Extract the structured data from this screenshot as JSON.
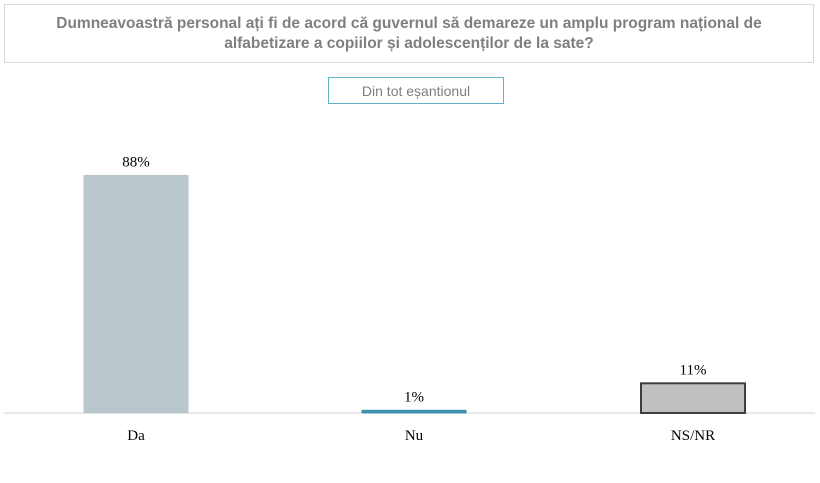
{
  "title": "Dumneavoastră personal ați fi de acord că guvernul să demareze un amplu program național de alfabetizare a copiilor și adolescenților de la sate?",
  "subtitle": "Din tot eșantionul",
  "chart_data": {
    "type": "bar",
    "categories": [
      "Da",
      "Nu",
      "NS/NR"
    ],
    "values": [
      88,
      1,
      11
    ],
    "value_labels": [
      "88%",
      "1%",
      "11%"
    ],
    "ylim": [
      0,
      100
    ],
    "grid": false,
    "legend": "none",
    "colors": [
      "#b9c6cb",
      "#3d8fb0",
      "#c0c0c0"
    ],
    "edge_colors": [
      "#b9c6cb",
      "#3d8fb0",
      "#3f3f3f"
    ]
  }
}
